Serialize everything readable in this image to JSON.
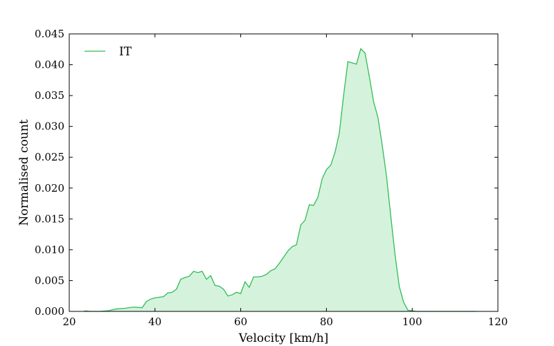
{
  "chart_data": {
    "type": "area",
    "title": "",
    "xlabel": "Velocity [km/h]",
    "ylabel": "Normalised count",
    "xlim": [
      20,
      120
    ],
    "ylim": [
      0,
      0.045
    ],
    "x_ticks": [
      20,
      40,
      60,
      80,
      100,
      120
    ],
    "x_tick_labels": [
      "20",
      "40",
      "60",
      "80",
      "100",
      "120"
    ],
    "y_ticks": [
      0,
      0.005,
      0.01,
      0.015,
      0.02,
      0.025,
      0.03,
      0.035,
      0.04,
      0.045
    ],
    "y_tick_labels": [
      "0.000",
      "0.005",
      "0.010",
      "0.015",
      "0.020",
      "0.025",
      "0.030",
      "0.035",
      "0.040",
      "0.045"
    ],
    "grid": false,
    "legend_position": "top-left",
    "series": [
      {
        "name": "IT",
        "color": "#2ebd55",
        "fill": "#d5f2dc",
        "x": [
          23.5,
          25,
          27,
          29,
          31,
          33,
          35,
          37,
          38,
          39,
          40,
          41,
          42,
          43,
          44,
          45,
          46,
          47,
          48,
          49,
          50,
          51,
          52,
          53,
          54,
          55,
          56,
          57,
          58,
          59,
          60,
          61,
          62,
          63,
          64,
          65,
          66,
          67,
          68,
          69,
          70,
          71,
          72,
          73,
          74,
          75,
          76,
          77,
          78,
          79,
          80,
          81,
          82,
          83,
          84,
          85,
          86,
          87,
          88,
          89,
          90,
          91,
          92,
          93,
          94,
          95,
          96,
          97,
          98,
          99,
          100,
          101,
          102,
          103,
          104,
          105,
          106,
          107,
          108,
          109,
          110,
          111,
          112,
          113,
          114,
          115
        ],
        "y": [
          0.0001,
          0.0,
          0.0,
          0.0001,
          0.0004,
          0.0005,
          0.0007,
          0.0006,
          0.0016,
          0.002,
          0.0022,
          0.0023,
          0.0024,
          0.003,
          0.0031,
          0.0036,
          0.0052,
          0.0055,
          0.0057,
          0.0065,
          0.0063,
          0.0065,
          0.0052,
          0.0058,
          0.0042,
          0.0041,
          0.0036,
          0.0025,
          0.0027,
          0.0031,
          0.0029,
          0.0048,
          0.0039,
          0.0056,
          0.0056,
          0.0057,
          0.006,
          0.0066,
          0.0069,
          0.0078,
          0.0088,
          0.0098,
          0.0105,
          0.0108,
          0.014,
          0.0148,
          0.0173,
          0.0172,
          0.0185,
          0.0215,
          0.023,
          0.0237,
          0.0258,
          0.0289,
          0.035,
          0.0405,
          0.0403,
          0.0401,
          0.0426,
          0.0419,
          0.0381,
          0.034,
          0.0315,
          0.027,
          0.022,
          0.0155,
          0.0092,
          0.004,
          0.0015,
          0.0002,
          0.0001,
          0.0,
          0.0,
          0.0,
          0.0,
          0.0,
          0.0,
          0.0,
          0.0,
          0.0,
          0.0,
          0.0,
          0.0,
          0.0,
          0.0,
          0.0
        ]
      }
    ]
  }
}
